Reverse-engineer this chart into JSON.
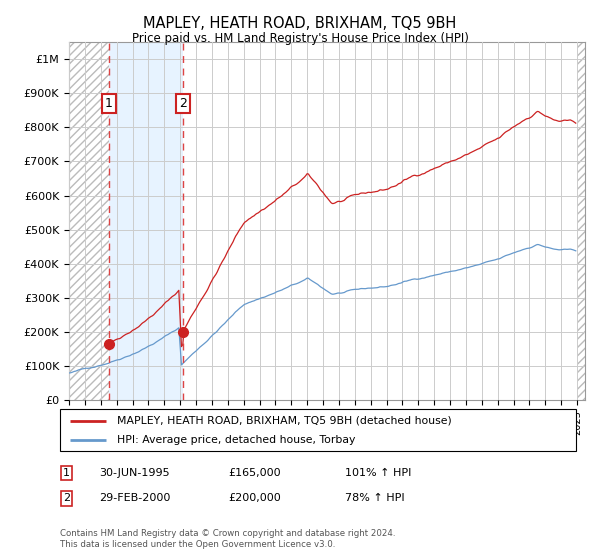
{
  "title": "MAPLEY, HEATH ROAD, BRIXHAM, TQ5 9BH",
  "subtitle": "Price paid vs. HM Land Registry's House Price Index (HPI)",
  "legend_line1": "MAPLEY, HEATH ROAD, BRIXHAM, TQ5 9BH (detached house)",
  "legend_line2": "HPI: Average price, detached house, Torbay",
  "footnote": "Contains HM Land Registry data © Crown copyright and database right 2024.\nThis data is licensed under the Open Government Licence v3.0.",
  "transaction1_date": "30-JUN-1995",
  "transaction1_price": 165000,
  "transaction1_hpi_pct": "101% ↑ HPI",
  "transaction2_date": "29-FEB-2000",
  "transaction2_price": 200000,
  "transaction2_hpi_pct": "78% ↑ HPI",
  "transaction1_x": 1995.5,
  "transaction2_x": 2000.17,
  "ylim_min": 0,
  "ylim_max": 1050000,
  "xlim_min": 1993.0,
  "xlim_max": 2025.5,
  "hpi_color": "#6699cc",
  "price_color": "#cc2222",
  "bg_color": "#ffffff",
  "grid_color": "#cccccc",
  "hatch_color": "#bbbbbb",
  "shade_color": "#ddeeff",
  "vline_color": "#dd4444"
}
